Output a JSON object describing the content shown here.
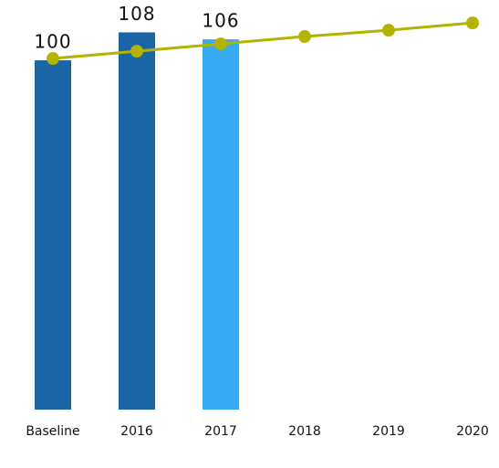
{
  "chart_data": {
    "type": "bar",
    "categories": [
      "Baseline",
      "2016",
      "2017",
      "2018",
      "2019",
      "2020"
    ],
    "series": [
      {
        "type": "bar",
        "colors": [
          "#1a65a5",
          "#1a65a5",
          "#36aaf5",
          null,
          null,
          null
        ],
        "values": [
          100,
          108,
          106,
          null,
          null,
          null
        ]
      },
      {
        "type": "line",
        "color": "#b3b300",
        "values": [
          100.5,
          102.6,
          104.7,
          106.8,
          108.6,
          110.7
        ]
      }
    ],
    "ylim": [
      0,
      117
    ]
  }
}
